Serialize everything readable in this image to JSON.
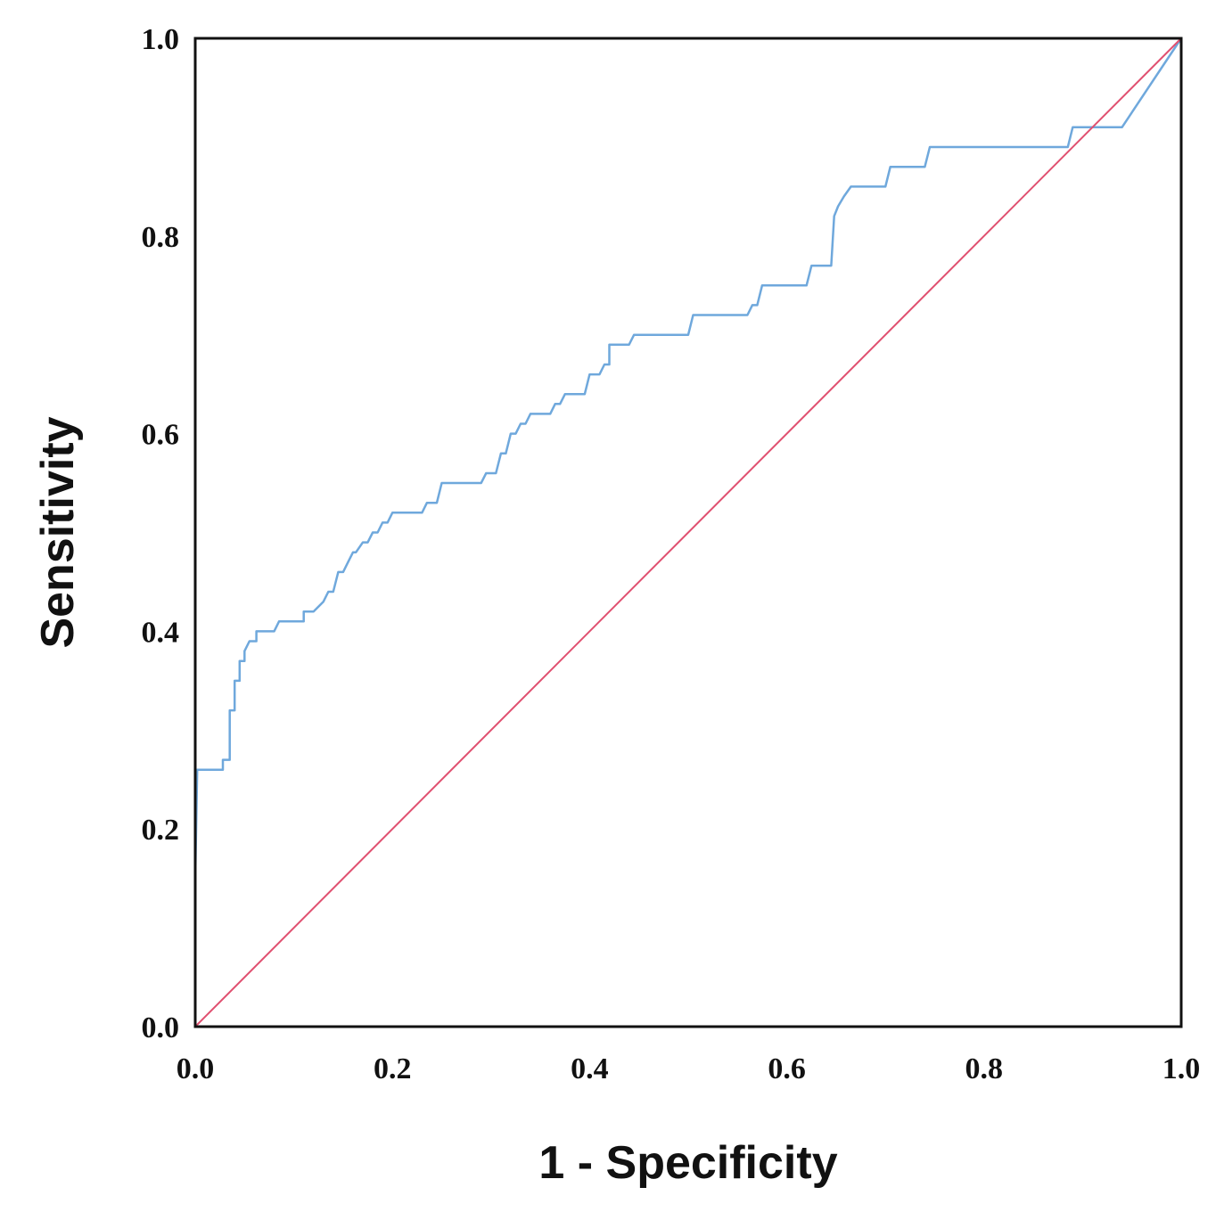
{
  "chart_data": {
    "type": "line",
    "title": "",
    "xlabel": "1 - Specificity",
    "ylabel": "Sensitivity",
    "xlim": [
      0,
      1
    ],
    "ylim": [
      0,
      1
    ],
    "x_ticks": [
      "0.0",
      "0.2",
      "0.4",
      "0.6",
      "0.8",
      "1.0"
    ],
    "y_ticks": [
      "0.0",
      "0.2",
      "0.4",
      "0.6",
      "0.8",
      "1.0"
    ],
    "grid": false,
    "legend": "none",
    "series": [
      {
        "role": "roc-curve",
        "color": "#6fa8dc",
        "points": [
          [
            0.0,
            0.0
          ],
          [
            0.0,
            0.15
          ],
          [
            0.002,
            0.26
          ],
          [
            0.028,
            0.26
          ],
          [
            0.028,
            0.27
          ],
          [
            0.035,
            0.27
          ],
          [
            0.035,
            0.32
          ],
          [
            0.04,
            0.32
          ],
          [
            0.04,
            0.35
          ],
          [
            0.045,
            0.35
          ],
          [
            0.045,
            0.37
          ],
          [
            0.05,
            0.37
          ],
          [
            0.05,
            0.38
          ],
          [
            0.055,
            0.39
          ],
          [
            0.062,
            0.39
          ],
          [
            0.062,
            0.4
          ],
          [
            0.08,
            0.4
          ],
          [
            0.085,
            0.41
          ],
          [
            0.11,
            0.41
          ],
          [
            0.11,
            0.42
          ],
          [
            0.12,
            0.42
          ],
          [
            0.13,
            0.43
          ],
          [
            0.135,
            0.44
          ],
          [
            0.14,
            0.44
          ],
          [
            0.145,
            0.46
          ],
          [
            0.15,
            0.46
          ],
          [
            0.155,
            0.47
          ],
          [
            0.16,
            0.48
          ],
          [
            0.163,
            0.48
          ],
          [
            0.17,
            0.49
          ],
          [
            0.175,
            0.49
          ],
          [
            0.18,
            0.5
          ],
          [
            0.185,
            0.5
          ],
          [
            0.19,
            0.51
          ],
          [
            0.195,
            0.51
          ],
          [
            0.2,
            0.52
          ],
          [
            0.23,
            0.52
          ],
          [
            0.235,
            0.53
          ],
          [
            0.245,
            0.53
          ],
          [
            0.25,
            0.55
          ],
          [
            0.29,
            0.55
          ],
          [
            0.295,
            0.56
          ],
          [
            0.305,
            0.56
          ],
          [
            0.31,
            0.58
          ],
          [
            0.315,
            0.58
          ],
          [
            0.32,
            0.6
          ],
          [
            0.325,
            0.6
          ],
          [
            0.33,
            0.61
          ],
          [
            0.335,
            0.61
          ],
          [
            0.34,
            0.62
          ],
          [
            0.36,
            0.62
          ],
          [
            0.365,
            0.63
          ],
          [
            0.37,
            0.63
          ],
          [
            0.375,
            0.64
          ],
          [
            0.395,
            0.64
          ],
          [
            0.4,
            0.66
          ],
          [
            0.41,
            0.66
          ],
          [
            0.415,
            0.67
          ],
          [
            0.42,
            0.67
          ],
          [
            0.42,
            0.69
          ],
          [
            0.44,
            0.69
          ],
          [
            0.445,
            0.7
          ],
          [
            0.5,
            0.7
          ],
          [
            0.505,
            0.72
          ],
          [
            0.56,
            0.72
          ],
          [
            0.565,
            0.73
          ],
          [
            0.57,
            0.73
          ],
          [
            0.575,
            0.75
          ],
          [
            0.62,
            0.75
          ],
          [
            0.625,
            0.77
          ],
          [
            0.645,
            0.77
          ],
          [
            0.648,
            0.82
          ],
          [
            0.652,
            0.83
          ],
          [
            0.658,
            0.84
          ],
          [
            0.665,
            0.85
          ],
          [
            0.7,
            0.85
          ],
          [
            0.705,
            0.87
          ],
          [
            0.74,
            0.87
          ],
          [
            0.745,
            0.89
          ],
          [
            0.885,
            0.89
          ],
          [
            0.89,
            0.91
          ],
          [
            0.94,
            0.91
          ],
          [
            1.0,
            1.0
          ]
        ]
      },
      {
        "role": "reference-line",
        "color": "#e05070",
        "points": [
          [
            0.0,
            0.0
          ],
          [
            1.0,
            1.0
          ]
        ]
      }
    ]
  }
}
